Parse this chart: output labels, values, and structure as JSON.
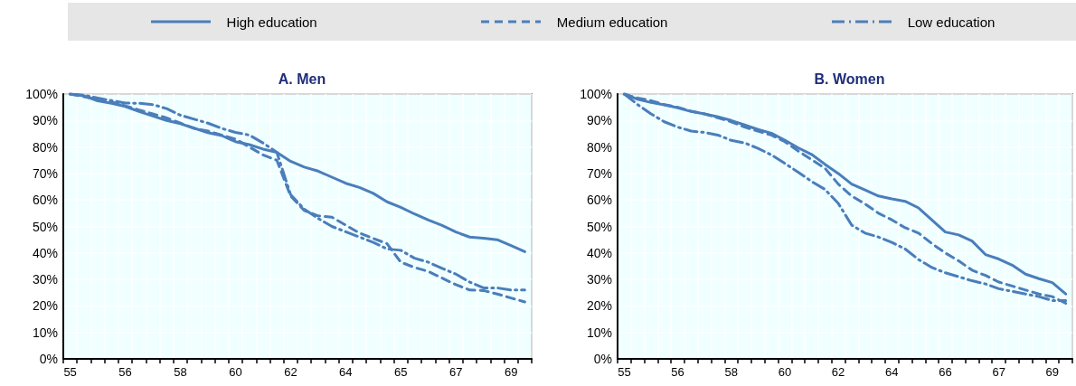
{
  "chart_data": [
    {
      "type": "line",
      "title": "A. Men",
      "legend": "top",
      "grid": true,
      "categories": [
        "55",
        null,
        null,
        null,
        "56",
        null,
        null,
        null,
        "58",
        null,
        null,
        null,
        "60",
        null,
        null,
        null,
        "62",
        null,
        null,
        null,
        "64",
        null,
        null,
        null,
        "65",
        null,
        null,
        null,
        "67",
        null,
        null,
        null,
        "69",
        null
      ],
      "ylim": [
        0,
        100
      ],
      "yticks": [
        {
          "value": 0,
          "label": "0%"
        },
        {
          "value": 10,
          "label": "10%"
        },
        {
          "value": 20,
          "label": "20%"
        },
        {
          "value": 30,
          "label": "30%"
        },
        {
          "value": 40,
          "label": "40%"
        },
        {
          "value": 50,
          "label": "50%"
        },
        {
          "value": 60,
          "label": "60%"
        },
        {
          "value": 70,
          "label": "70%"
        },
        {
          "value": 80,
          "label": "80%"
        },
        {
          "value": 90,
          "label": "90%"
        },
        {
          "value": 100,
          "label": "100%"
        }
      ],
      "series": [
        {
          "name": "High education",
          "color": "#4a7ebb",
          "line_style": "solid",
          "values": [
            100,
            99.3,
            97.4,
            96.5,
            95.3,
            93.4,
            91.7,
            90,
            88.8,
            87.1,
            85.4,
            84.3,
            82,
            80.9,
            79.2,
            78,
            74.6,
            72.4,
            70.9,
            68.6,
            66.3,
            64.7,
            62.5,
            59.3,
            57.2,
            54.7,
            52.4,
            50.4,
            47.9,
            46,
            45.6,
            45,
            42.8,
            40.5
          ]
        },
        {
          "name": "Medium education",
          "color": "#4a7ebb",
          "line_style": "dashed",
          "values": [
            100,
            99,
            98,
            97,
            95.5,
            94,
            92.5,
            91,
            89,
            87,
            86,
            84.5,
            83,
            80,
            77,
            75,
            61.5,
            56,
            54,
            53.5,
            50.5,
            47.5,
            45.5,
            43.5,
            36.5,
            34.5,
            33,
            30.5,
            28,
            26,
            25.8,
            24.5,
            23,
            21.5
          ]
        },
        {
          "name": "Low education",
          "color": "#4a7ebb",
          "line_style": "dashdot",
          "values": [
            100,
            99.5,
            98.5,
            97.5,
            96.6,
            96.5,
            96,
            94.5,
            92,
            90.5,
            89,
            87,
            85.5,
            84.5,
            81.5,
            78,
            62,
            56.5,
            53,
            50,
            48,
            46,
            44,
            41.5,
            41,
            38,
            36.5,
            34.2,
            32,
            29,
            26.8,
            26.8,
            26,
            26
          ]
        }
      ]
    },
    {
      "type": "line",
      "title": "B. Women",
      "grid": true,
      "categories": [
        "55",
        null,
        null,
        null,
        "56",
        null,
        null,
        null,
        "58",
        null,
        null,
        null,
        "60",
        null,
        null,
        null,
        "62",
        null,
        null,
        null,
        "64",
        null,
        null,
        null,
        "66",
        null,
        null,
        null,
        "67",
        null,
        null,
        null,
        "69",
        null
      ],
      "ylim": [
        0,
        100
      ],
      "yticks": [
        {
          "value": 0,
          "label": "0%"
        },
        {
          "value": 10,
          "label": "10%"
        },
        {
          "value": 20,
          "label": "20%"
        },
        {
          "value": 30,
          "label": "30%"
        },
        {
          "value": 40,
          "label": "40%"
        },
        {
          "value": 50,
          "label": "50%"
        },
        {
          "value": 60,
          "label": "60%"
        },
        {
          "value": 70,
          "label": "70%"
        },
        {
          "value": 80,
          "label": "80%"
        },
        {
          "value": 90,
          "label": "90%"
        },
        {
          "value": 100,
          "label": "100%"
        }
      ],
      "series": [
        {
          "color": "#4a7ebb",
          "line_style": "solid",
          "values": [
            100,
            98,
            96.8,
            95.9,
            94.8,
            93.4,
            92.5,
            91.4,
            90,
            88.3,
            86.6,
            85.2,
            82.6,
            79.7,
            77.2,
            73.5,
            70,
            66,
            63.8,
            61.5,
            60.4,
            59.5,
            57,
            52.4,
            47.9,
            46.8,
            44.5,
            39.4,
            37.7,
            35.4,
            32,
            30.3,
            28.8,
            24.5
          ]
        },
        {
          "color": "#4a7ebb",
          "line_style": "dashed",
          "values": [
            100,
            98.5,
            97.5,
            96,
            95,
            93.5,
            92.5,
            91,
            89.5,
            87.5,
            86,
            84.5,
            82,
            78.5,
            75.2,
            72,
            66,
            61.5,
            58.5,
            55,
            52.5,
            49.5,
            47.5,
            43.5,
            40,
            37,
            33.5,
            31.5,
            29,
            27.5,
            26,
            24.5,
            23.5,
            21
          ]
        },
        {
          "color": "#4a7ebb",
          "line_style": "dashdot",
          "values": [
            100,
            96,
            92.5,
            89.5,
            87.5,
            86,
            85.5,
            84.5,
            82.5,
            81.5,
            79.5,
            77,
            73.8,
            70.5,
            67,
            64,
            58.7,
            50.5,
            47.5,
            46,
            44,
            41.5,
            37.5,
            34.5,
            32.5,
            31,
            29.5,
            28.3,
            26.5,
            25.5,
            24.5,
            23.5,
            22,
            22
          ]
        }
      ]
    }
  ]
}
